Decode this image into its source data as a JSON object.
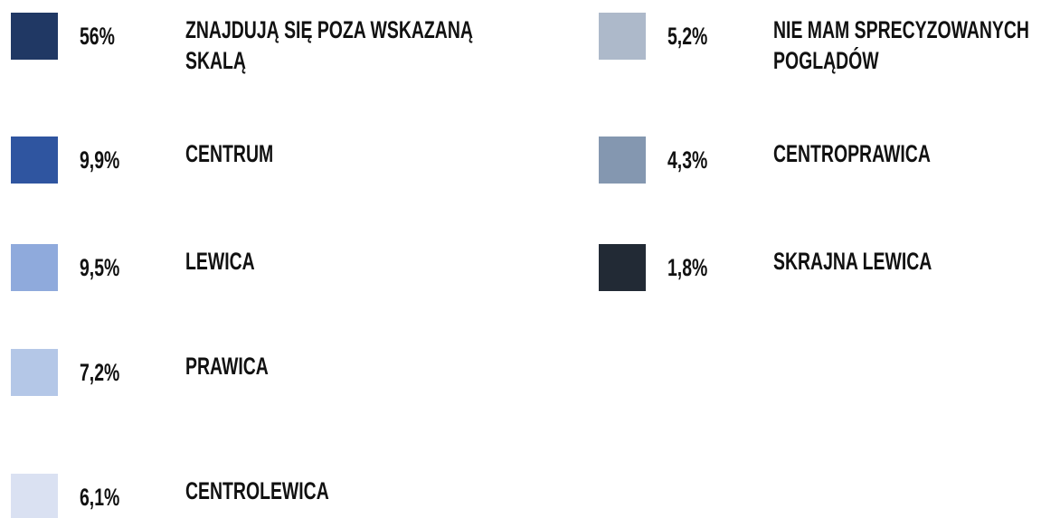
{
  "legend": {
    "items": [
      {
        "value": "56%",
        "label": "ZNAJDUJĄ SIĘ POZA WSKAZANĄ SKALĄ",
        "color": "#203864"
      },
      {
        "value": "9,9%",
        "label": "CENTRUM",
        "color": "#2f55a0"
      },
      {
        "value": "9,5%",
        "label": "LEWICA",
        "color": "#8faadc"
      },
      {
        "value": "7,2%",
        "label": "PRAWICA",
        "color": "#b4c7e7"
      },
      {
        "value": "6,1%",
        "label": "CENTROLEWICA",
        "color": "#dae1f2"
      },
      {
        "value": "5,2%",
        "label": "NIE MAM SPRECYZOWANYCH POGLĄDÓW",
        "color": "#adb9ca"
      },
      {
        "value": "4,3%",
        "label": "CENTROPRAWICA",
        "color": "#8497b0"
      },
      {
        "value": "1,8%",
        "label": "SKRAJNA LEWICA",
        "color": "#222a35"
      }
    ]
  }
}
